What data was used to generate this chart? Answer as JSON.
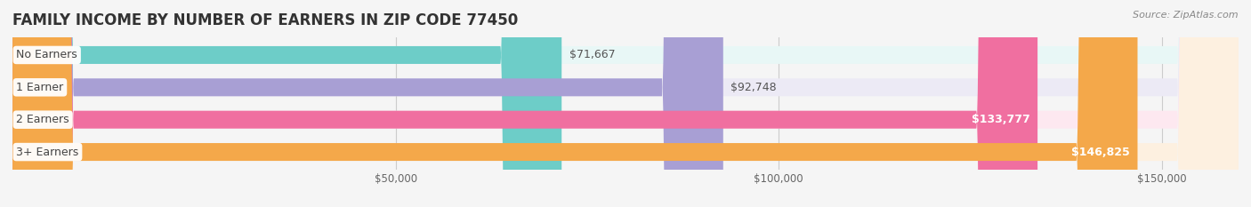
{
  "title": "FAMILY INCOME BY NUMBER OF EARNERS IN ZIP CODE 77450",
  "source": "Source: ZipAtlas.com",
  "categories": [
    "No Earners",
    "1 Earner",
    "2 Earners",
    "3+ Earners"
  ],
  "values": [
    71667,
    92748,
    133777,
    146825
  ],
  "bar_colors": [
    "#6dcdc8",
    "#a89fd4",
    "#f06fa0",
    "#f4a84a"
  ],
  "bar_bg_colors": [
    "#e8f7f6",
    "#eceaf5",
    "#fde8f0",
    "#fdf0e0"
  ],
  "value_labels": [
    "$71,667",
    "$92,748",
    "$133,777",
    "$146,825"
  ],
  "x_tick_labels": [
    "$50,000",
    "$100,000",
    "$150,000"
  ],
  "x_tick_values": [
    50000,
    100000,
    150000
  ],
  "xmin": 0,
  "xmax": 160000,
  "background_color": "#f5f5f5",
  "bar_height": 0.55,
  "title_fontsize": 12,
  "label_fontsize": 9,
  "tick_fontsize": 8.5,
  "source_fontsize": 8
}
